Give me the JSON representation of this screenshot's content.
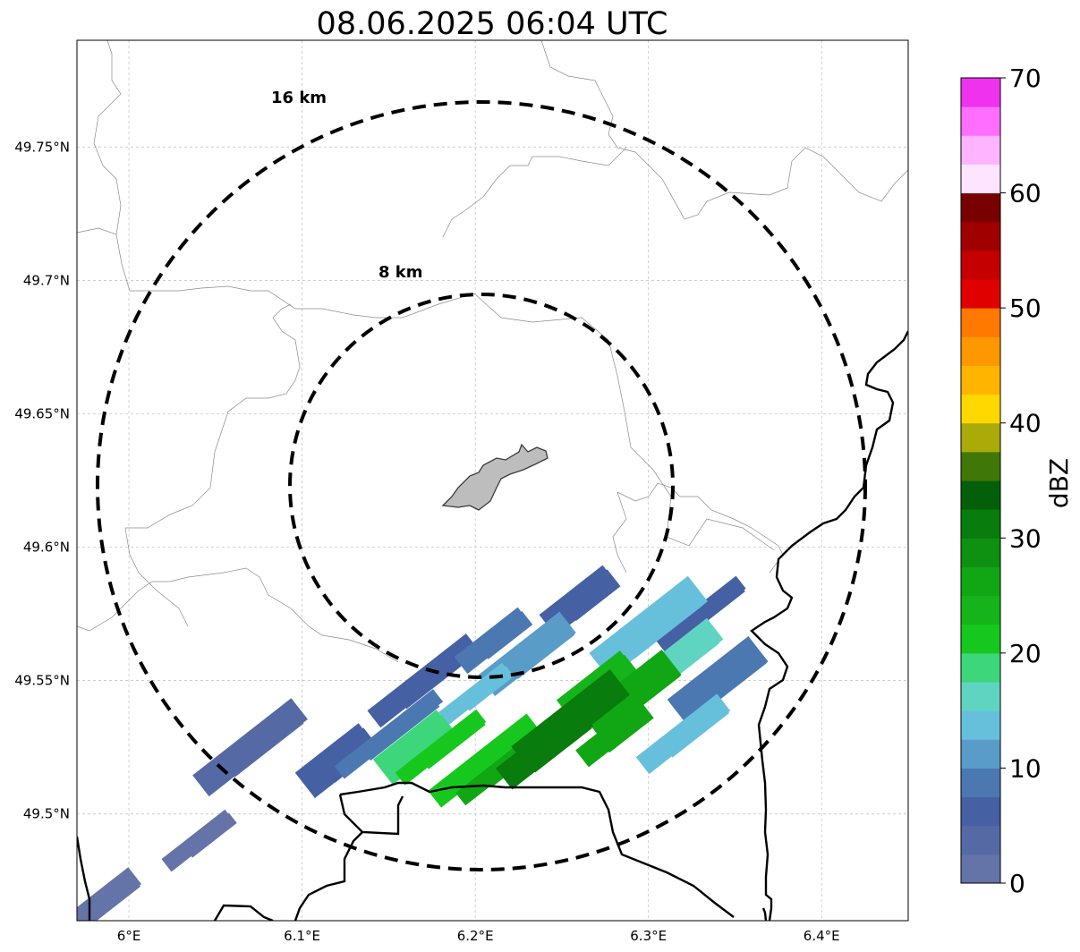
{
  "title": "08.06.2025 06:04 UTC",
  "map": {
    "lon_range": [
      5.97,
      6.45
    ],
    "lat_range": [
      49.46,
      49.79
    ],
    "lon_ticks": [
      {
        "value": 6.0,
        "label": "6°E"
      },
      {
        "value": 6.1,
        "label": "6.1°E"
      },
      {
        "value": 6.2,
        "label": "6.2°E"
      },
      {
        "value": 6.3,
        "label": "6.3°E"
      },
      {
        "value": 6.4,
        "label": "6.4°E"
      }
    ],
    "lat_ticks": [
      {
        "value": 49.5,
        "label": "49.5°N"
      },
      {
        "value": 49.55,
        "label": "49.55°N"
      },
      {
        "value": 49.6,
        "label": "49.6°N"
      },
      {
        "value": 49.65,
        "label": "49.65°N"
      },
      {
        "value": 49.7,
        "label": "49.7°N"
      },
      {
        "value": 49.75,
        "label": "49.75°N"
      }
    ],
    "grid": true,
    "center": {
      "lon": 6.202,
      "lat": 49.623
    },
    "range_rings": [
      {
        "km": 16,
        "label": "16 km"
      },
      {
        "km": 8,
        "label": "8 km"
      }
    ]
  },
  "colorbar": {
    "label": "dBZ",
    "ticks": [
      {
        "value": 0,
        "label": "0"
      },
      {
        "value": 10,
        "label": "10"
      },
      {
        "value": 20,
        "label": "20"
      },
      {
        "value": 30,
        "label": "30"
      },
      {
        "value": 40,
        "label": "40"
      },
      {
        "value": 50,
        "label": "50"
      },
      {
        "value": 60,
        "label": "60"
      },
      {
        "value": 70,
        "label": "70"
      }
    ],
    "colors": [
      "#6474a8",
      "#556aa4",
      "#4660a4",
      "#4b78b0",
      "#5a9cc8",
      "#66c0dc",
      "#5fd4c0",
      "#3ed67a",
      "#16c81e",
      "#14b41a",
      "#10a614",
      "#0e9010",
      "#087c0c",
      "#046008",
      "#407808",
      "#aaaa08",
      "#ffd800",
      "#ffb400",
      "#ff9800",
      "#ff7800",
      "#e00000",
      "#c40000",
      "#a00000",
      "#780000",
      "#ffe4ff",
      "#ffb4ff",
      "#ff6eff",
      "#ee32ee"
    ]
  },
  "chart_data": {
    "type": "heatmap",
    "title": "08.06.2025 06:04 UTC",
    "variable": "reflectivity",
    "units": "dBZ",
    "value_range": [
      0,
      70
    ],
    "lon_range": [
      5.97,
      6.45
    ],
    "lat_range": [
      49.46,
      49.79
    ],
    "precipitation_cells": [
      {
        "lon": 6.255,
        "lat": 49.535,
        "dbz": 32
      },
      {
        "lon": 6.24,
        "lat": 49.525,
        "dbz": 30
      },
      {
        "lon": 6.28,
        "lat": 49.53,
        "dbz": 27
      },
      {
        "lon": 6.29,
        "lat": 49.545,
        "dbz": 25
      },
      {
        "lon": 6.27,
        "lat": 49.548,
        "dbz": 24
      },
      {
        "lon": 6.22,
        "lat": 49.52,
        "dbz": 26
      },
      {
        "lon": 6.205,
        "lat": 49.52,
        "dbz": 22
      },
      {
        "lon": 6.18,
        "lat": 49.525,
        "dbz": 20
      },
      {
        "lon": 6.165,
        "lat": 49.525,
        "dbz": 18
      },
      {
        "lon": 6.31,
        "lat": 49.555,
        "dbz": 16
      },
      {
        "lon": 6.32,
        "lat": 49.53,
        "dbz": 14
      },
      {
        "lon": 6.3,
        "lat": 49.57,
        "dbz": 13
      },
      {
        "lon": 6.23,
        "lat": 49.56,
        "dbz": 12
      },
      {
        "lon": 6.2,
        "lat": 49.545,
        "dbz": 13
      },
      {
        "lon": 6.15,
        "lat": 49.53,
        "dbz": 9
      },
      {
        "lon": 6.12,
        "lat": 49.52,
        "dbz": 6
      },
      {
        "lon": 6.07,
        "lat": 49.525,
        "dbz": 4
      },
      {
        "lon": 6.34,
        "lat": 49.55,
        "dbz": 8
      },
      {
        "lon": 6.33,
        "lat": 49.575,
        "dbz": 6
      },
      {
        "lon": 6.26,
        "lat": 49.58,
        "dbz": 7
      },
      {
        "lon": 6.21,
        "lat": 49.565,
        "dbz": 9
      },
      {
        "lon": 6.17,
        "lat": 49.55,
        "dbz": 6
      },
      {
        "lon": 6.04,
        "lat": 49.49,
        "dbz": 1
      },
      {
        "lon": 5.98,
        "lat": 49.465,
        "dbz": 1
      }
    ]
  }
}
